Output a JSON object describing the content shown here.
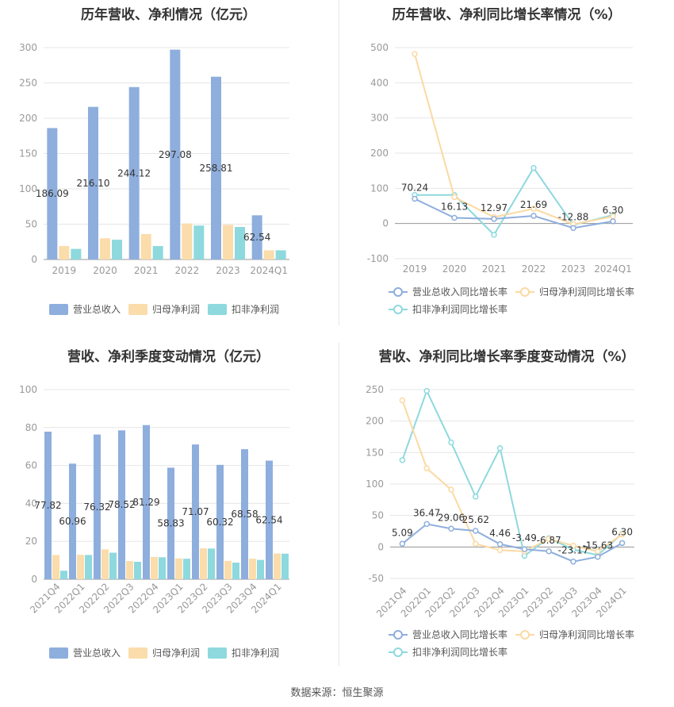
{
  "source_label": "数据来源：恒生聚源",
  "colors": {
    "revenue": "#8eaedd",
    "net": "#fbdcab",
    "deducted": "#8dd9de",
    "line_rev": "#8eaedd",
    "line_net": "#fbd9a3",
    "line_ded": "#8dd9de",
    "grid": "#e6e6e6",
    "axis_text": "#999999",
    "label_text": "#333333"
  },
  "chart_data": [
    {
      "type": "bar",
      "title": "历年营收、净利情况（亿元）",
      "categories": [
        "2019",
        "2020",
        "2021",
        "2022",
        "2023",
        "2024Q1"
      ],
      "ylim": [
        0,
        300
      ],
      "yticks": [
        0,
        50,
        100,
        150,
        200,
        250,
        300
      ],
      "series": [
        {
          "name": "营业总收入",
          "values": [
            186.09,
            216.1,
            244.12,
            297.08,
            258.81,
            62.54
          ],
          "color_key": "revenue"
        },
        {
          "name": "归母净利润",
          "values": [
            19,
            30,
            36,
            51,
            49,
            13
          ],
          "color_key": "net"
        },
        {
          "name": "扣非净利润",
          "values": [
            15,
            28,
            19,
            48,
            46,
            13
          ],
          "color_key": "deducted"
        }
      ],
      "data_labels": [
        "186.09",
        "216.10",
        "244.12",
        "297.08",
        "258.81",
        "62.54"
      ],
      "legend": "bottom"
    },
    {
      "type": "line",
      "title": "历年营收、净利同比增长率情况（%）",
      "categories": [
        "2019",
        "2020",
        "2021",
        "2022",
        "2023",
        "2024Q1"
      ],
      "ylim": [
        -100,
        500
      ],
      "yticks": [
        -100,
        0,
        100,
        200,
        300,
        400,
        500
      ],
      "series": [
        {
          "name": "营业总收入同比增长率",
          "values": [
            70.24,
            16.13,
            12.97,
            21.69,
            -12.88,
            6.3
          ],
          "color_key": "line_rev"
        },
        {
          "name": "归母净利润同比增长率",
          "values": [
            482,
            75,
            18,
            42,
            -2,
            20
          ],
          "color_key": "line_net"
        },
        {
          "name": "扣非净利润同比增长率",
          "values": [
            81,
            81,
            -32,
            158,
            -4,
            24
          ],
          "color_key": "line_ded"
        }
      ],
      "data_labels": [
        "70.24",
        "16.13",
        "12.97",
        "21.69",
        "-12.88",
        "6.30"
      ],
      "legend": "bottom"
    },
    {
      "type": "bar",
      "title": "营收、净利季度变动情况（亿元）",
      "categories": [
        "2021Q4",
        "2022Q1",
        "2022Q2",
        "2022Q3",
        "2022Q4",
        "2023Q1",
        "2023Q2",
        "2023Q3",
        "2023Q4",
        "2024Q1"
      ],
      "ylim": [
        0,
        100
      ],
      "yticks": [
        0,
        20,
        40,
        60,
        80,
        100
      ],
      "series": [
        {
          "name": "营业总收入",
          "values": [
            77.82,
            60.96,
            76.32,
            78.52,
            81.29,
            58.83,
            71.07,
            60.32,
            68.58,
            62.54
          ],
          "color_key": "revenue"
        },
        {
          "name": "归母净利润",
          "values": [
            12.8,
            12.9,
            15.8,
            9.6,
            11.8,
            11,
            16.3,
            9.7,
            10.8,
            13.6
          ],
          "color_key": "net"
        },
        {
          "name": "扣非净利润",
          "values": [
            4.5,
            12.8,
            14,
            9.2,
            11.6,
            10.8,
            16.2,
            8.8,
            10.2,
            13.5
          ],
          "color_key": "deducted"
        }
      ],
      "data_labels": [
        "77.82",
        "60.96",
        "76.32",
        "78.52",
        "81.29",
        "58.83",
        "71.07",
        "60.32",
        "68.58",
        "62.54"
      ],
      "legend": "bottom"
    },
    {
      "type": "line",
      "title": "营收、净利同比增长率季度变动情况（%）",
      "categories": [
        "2021Q4",
        "2022Q1",
        "2022Q2",
        "2022Q3",
        "2022Q4",
        "2023Q1",
        "2023Q2",
        "2023Q3",
        "2023Q4",
        "2024Q1"
      ],
      "ylim": [
        -50,
        250
      ],
      "yticks": [
        -50,
        0,
        50,
        100,
        150,
        200,
        250
      ],
      "series": [
        {
          "name": "营业总收入同比增长率",
          "values": [
            5.09,
            36.47,
            29.06,
            25.62,
            4.46,
            -3.49,
            -6.87,
            -23.17,
            -15.63,
            6.3
          ],
          "color_key": "line_rev"
        },
        {
          "name": "归母净利润同比增长率",
          "values": [
            233,
            125,
            91,
            5,
            -5,
            -7,
            13,
            2,
            -7,
            20
          ],
          "color_key": "line_net"
        },
        {
          "name": "扣非净利润同比增长率",
          "values": [
            138,
            248,
            166,
            80,
            157,
            -14,
            14,
            -4,
            -13,
            21
          ],
          "color_key": "line_ded"
        }
      ],
      "data_labels": [
        "5.09",
        "36.47",
        "29.06",
        "25.62",
        "4.46",
        "-3.49",
        "-6.87",
        "-23.17",
        "-15.63",
        "6.30"
      ],
      "legend": "bottom"
    }
  ]
}
